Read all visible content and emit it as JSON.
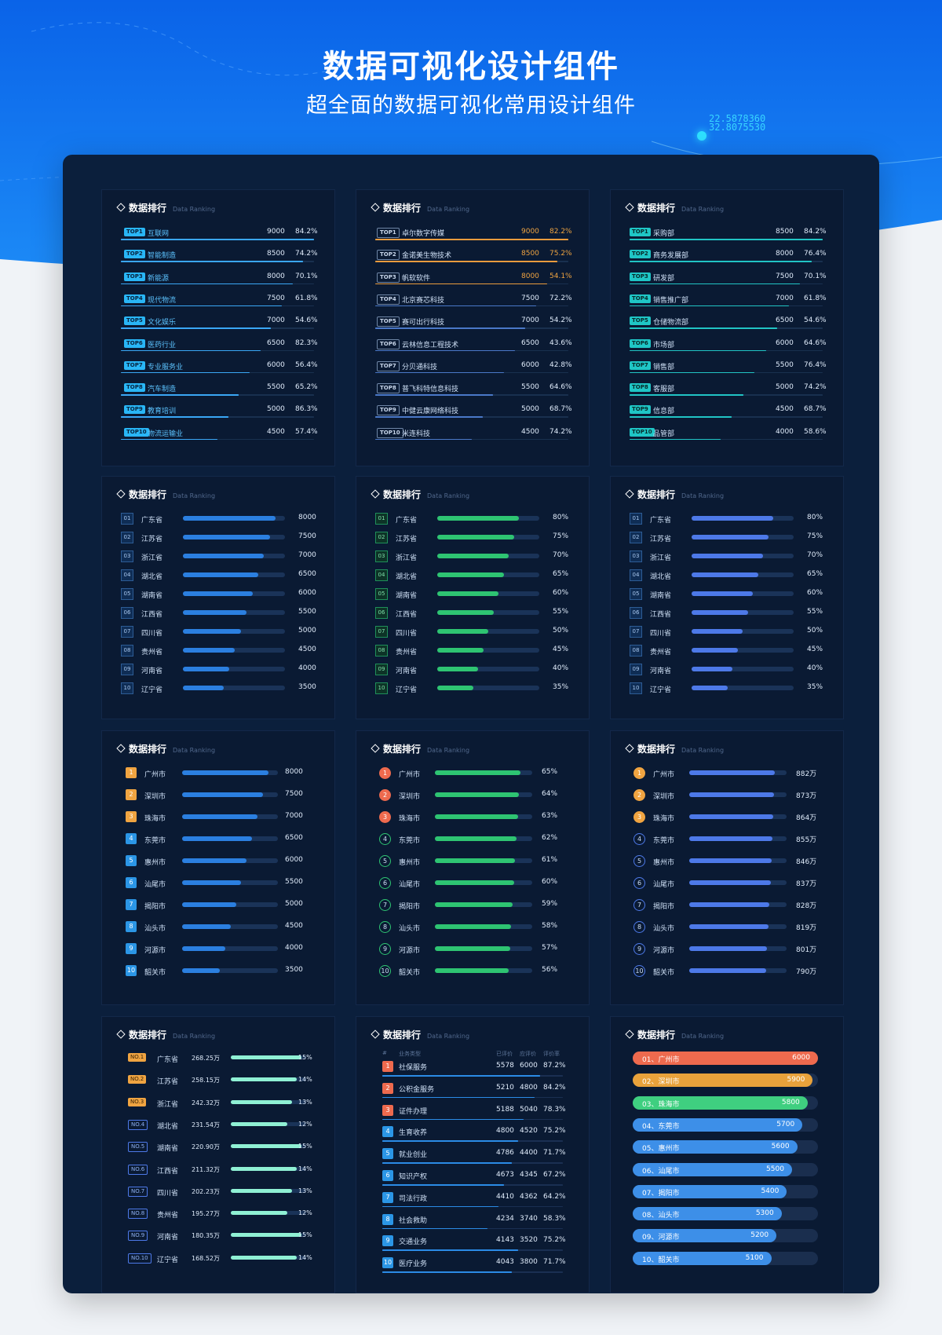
{
  "hero": {
    "title": "数据可视化设计组件",
    "subtitle": "超全面的数据可视化常用设计组件",
    "coords": [
      "22.5878360",
      "32.8075530"
    ]
  },
  "card_title": "数据排行",
  "card_subtitle": "Data Ranking",
  "colors": {
    "blue": "#2b8be6",
    "green": "#2ec472",
    "indigo": "#4d79e8",
    "orange": "#f0a441",
    "teal": "#21c4c4"
  },
  "chart_data": [
    {
      "type": "bar",
      "title": "数据排行",
      "subtitle": "Data Ranking",
      "style": "top-badge",
      "badge_prefix": "TOP",
      "categories": [
        "互联网",
        "智能制造",
        "新能源",
        "现代物流",
        "文化娱乐",
        "医药行业",
        "专业服务业",
        "汽车制造",
        "教育培训",
        "物流运输业"
      ],
      "values": [
        9000,
        8500,
        8000,
        7500,
        7000,
        6500,
        6000,
        5500,
        5000,
        4500
      ],
      "percents": [
        "84.2%",
        "74.2%",
        "70.1%",
        "61.8%",
        "54.6%",
        "82.3%",
        "56.4%",
        "65.2%",
        "86.3%",
        "57.4%"
      ]
    },
    {
      "type": "bar",
      "title": "数据排行",
      "subtitle": "Data Ranking",
      "style": "top-outline",
      "badge_prefix": "TOP",
      "categories": [
        "卓尔数字传媒",
        "金诺美生物技术",
        "帆软软件",
        "北京赛芯科技",
        "赛可出行科技",
        "云林信息工程技术",
        "分贝通科技",
        "普飞科特信息科技",
        "中健云康网络科技",
        "米连科技"
      ],
      "values": [
        9000,
        8500,
        8000,
        7500,
        7000,
        6500,
        6000,
        5500,
        5000,
        4500
      ],
      "percents": [
        "82.2%",
        "75.2%",
        "54.1%",
        "72.2%",
        "54.2%",
        "43.6%",
        "42.8%",
        "64.6%",
        "68.7%",
        "74.2%"
      ]
    },
    {
      "type": "bar",
      "title": "数据排行",
      "subtitle": "Data Ranking",
      "style": "top-teal",
      "badge_prefix": "TOP",
      "categories": [
        "采购部",
        "商务发展部",
        "研发部",
        "销售推广部",
        "仓储物流部",
        "市场部",
        "销售部",
        "客服部",
        "信息部",
        "品管部"
      ],
      "values": [
        8500,
        8000,
        7500,
        7000,
        6500,
        6000,
        5500,
        5000,
        4500,
        4000
      ],
      "percents": [
        "84.2%",
        "76.4%",
        "70.1%",
        "61.8%",
        "54.6%",
        "64.6%",
        "76.4%",
        "74.2%",
        "68.7%",
        "58.6%"
      ]
    },
    {
      "type": "bar",
      "title": "数据排行",
      "subtitle": "Data Ranking",
      "style": "box-blue",
      "labels": [
        "8000",
        "7500",
        "7000",
        "6500",
        "6000",
        "5500",
        "5000",
        "4500",
        "4000",
        "3500"
      ],
      "categories": [
        "广东省",
        "江苏省",
        "浙江省",
        "湖北省",
        "湖南省",
        "江西省",
        "四川省",
        "贵州省",
        "河南省",
        "辽宁省"
      ],
      "values": [
        8000,
        7500,
        7000,
        6500,
        6000,
        5500,
        5000,
        4500,
        4000,
        3500
      ]
    },
    {
      "type": "bar",
      "title": "数据排行",
      "subtitle": "Data Ranking",
      "style": "box-green",
      "labels": [
        "80%",
        "75%",
        "70%",
        "65%",
        "60%",
        "55%",
        "50%",
        "45%",
        "40%",
        "35%"
      ],
      "categories": [
        "广东省",
        "江苏省",
        "浙江省",
        "湖北省",
        "湖南省",
        "江西省",
        "四川省",
        "贵州省",
        "河南省",
        "辽宁省"
      ],
      "values": [
        80,
        75,
        70,
        65,
        60,
        55,
        50,
        45,
        40,
        35
      ]
    },
    {
      "type": "bar",
      "title": "数据排行",
      "subtitle": "Data Ranking",
      "style": "box-indigo",
      "labels": [
        "80%",
        "75%",
        "70%",
        "65%",
        "60%",
        "55%",
        "50%",
        "45%",
        "40%",
        "35%"
      ],
      "categories": [
        "广东省",
        "江苏省",
        "浙江省",
        "湖北省",
        "湖南省",
        "江西省",
        "四川省",
        "贵州省",
        "河南省",
        "辽宁省"
      ],
      "values": [
        80,
        75,
        70,
        65,
        60,
        55,
        50,
        45,
        40,
        35
      ]
    },
    {
      "type": "bar",
      "title": "数据排行",
      "subtitle": "Data Ranking",
      "style": "square",
      "labels": [
        "8000",
        "7500",
        "7000",
        "6500",
        "6000",
        "5500",
        "5000",
        "4500",
        "4000",
        "3500"
      ],
      "categories": [
        "广州市",
        "深圳市",
        "珠海市",
        "东莞市",
        "惠州市",
        "汕尾市",
        "揭阳市",
        "汕头市",
        "河源市",
        "韶关市"
      ],
      "values": [
        8000,
        7500,
        7000,
        6500,
        6000,
        5500,
        5000,
        4500,
        4000,
        3500
      ]
    },
    {
      "type": "bar",
      "title": "数据排行",
      "subtitle": "Data Ranking",
      "style": "circle-green",
      "labels": [
        "65%",
        "64%",
        "63%",
        "62%",
        "61%",
        "60%",
        "59%",
        "58%",
        "57%",
        "56%"
      ],
      "categories": [
        "广州市",
        "深圳市",
        "珠海市",
        "东莞市",
        "惠州市",
        "汕尾市",
        "揭阳市",
        "汕头市",
        "河源市",
        "韶关市"
      ],
      "values": [
        65,
        64,
        63,
        62,
        61,
        60,
        59,
        58,
        57,
        56
      ]
    },
    {
      "type": "bar",
      "title": "数据排行",
      "subtitle": "Data Ranking",
      "style": "circle-indigo",
      "labels": [
        "882万",
        "873万",
        "864万",
        "855万",
        "846万",
        "837万",
        "828万",
        "819万",
        "801万",
        "790万"
      ],
      "categories": [
        "广州市",
        "深圳市",
        "珠海市",
        "东莞市",
        "惠州市",
        "汕尾市",
        "揭阳市",
        "汕头市",
        "河源市",
        "韶关市"
      ],
      "values": [
        882,
        873,
        864,
        855,
        846,
        837,
        828,
        819,
        801,
        790
      ]
    },
    {
      "type": "bar",
      "title": "数据排行",
      "subtitle": "Data Ranking",
      "style": "no-badge",
      "badge_prefix": "NO.",
      "categories": [
        "广东省",
        "江苏省",
        "浙江省",
        "湖北省",
        "湖南省",
        "江西省",
        "四川省",
        "贵州省",
        "河南省",
        "辽宁省"
      ],
      "amounts": [
        "268.25万",
        "258.15万",
        "242.32万",
        "231.54万",
        "220.90万",
        "211.32万",
        "202.23万",
        "195.27万",
        "180.35万",
        "168.52万"
      ],
      "values": [
        15,
        14,
        13,
        12,
        15,
        14,
        13,
        12,
        15,
        14
      ],
      "labels": [
        "15%",
        "14%",
        "13%",
        "12%",
        "15%",
        "14%",
        "13%",
        "12%",
        "15%",
        "14%"
      ]
    },
    {
      "type": "table",
      "title": "数据排行",
      "subtitle": "Data Ranking",
      "columns": [
        "#",
        "业务类型",
        "已评价",
        "应评价",
        "评价率"
      ],
      "rows": [
        {
          "name": "社保服务",
          "done": "5578",
          "total": "6000",
          "rate": "87.2%"
        },
        {
          "name": "公积金服务",
          "done": "5210",
          "total": "4800",
          "rate": "84.2%"
        },
        {
          "name": "证件办理",
          "done": "5188",
          "total": "5040",
          "rate": "78.3%"
        },
        {
          "name": "生育收养",
          "done": "4800",
          "total": "4520",
          "rate": "75.2%"
        },
        {
          "name": "就业创业",
          "done": "4786",
          "total": "4400",
          "rate": "71.7%"
        },
        {
          "name": "知识产权",
          "done": "4673",
          "total": "4345",
          "rate": "67.2%"
        },
        {
          "name": "司法行政",
          "done": "4410",
          "total": "4362",
          "rate": "64.2%"
        },
        {
          "name": "社会救助",
          "done": "4234",
          "total": "3740",
          "rate": "58.3%"
        },
        {
          "name": "交通业务",
          "done": "4143",
          "total": "3520",
          "rate": "75.2%"
        },
        {
          "name": "医疗业务",
          "done": "4043",
          "total": "3800",
          "rate": "71.7%"
        }
      ]
    },
    {
      "type": "bar",
      "title": "数据排行",
      "subtitle": "Data Ranking",
      "style": "pill",
      "names": [
        "01、广州市",
        "02、深圳市",
        "03、珠海市",
        "04、东莞市",
        "05、惠州市",
        "06、汕尾市",
        "07、揭阳市",
        "08、汕头市",
        "09、河源市",
        "10、韶关市"
      ],
      "labels": [
        "6000",
        "5900",
        "5800",
        "5700",
        "5600",
        "5500",
        "5400",
        "5300",
        "5200",
        "5100"
      ],
      "values": [
        6000,
        5900,
        5800,
        5700,
        5600,
        5500,
        5400,
        5300,
        5200,
        5100
      ]
    }
  ]
}
